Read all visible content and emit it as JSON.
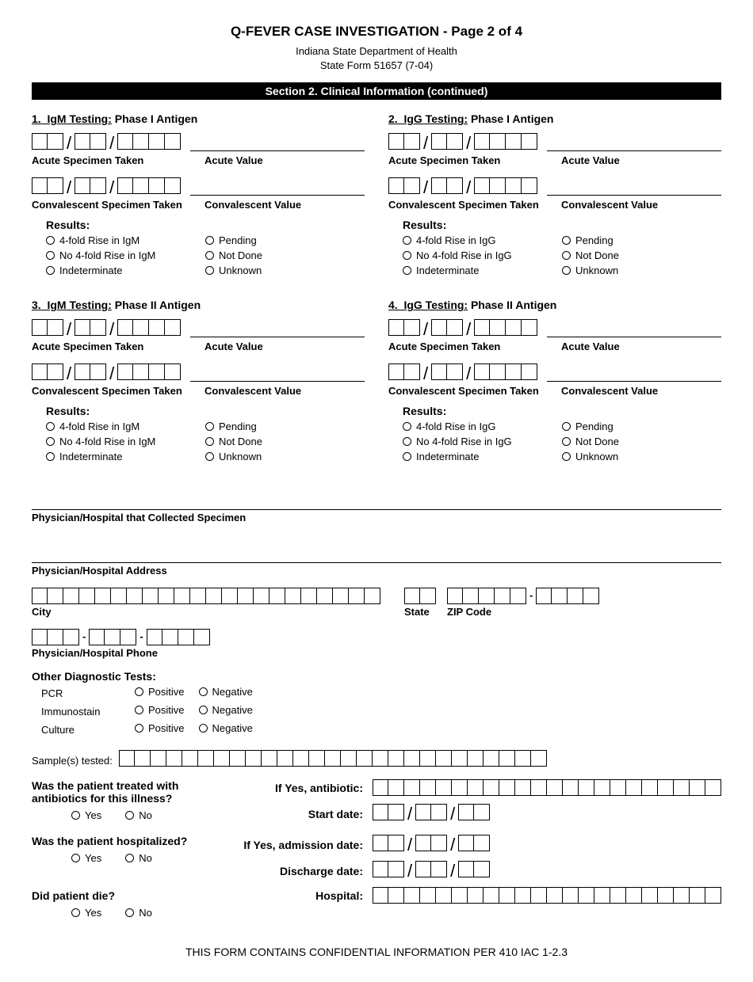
{
  "header": {
    "title": "Q-FEVER CASE INVESTIGATION -  Page 2 of 4",
    "dept": "Indiana State Department of Health",
    "form": "State Form 51657 (7-04)"
  },
  "section_bar": "Section 2. Clinical Information (continued)",
  "tests": [
    {
      "heading_num": "1.",
      "heading_type": "IgM Testing:",
      "heading_phase": "Phase I Antigen",
      "results_col1": [
        "4-fold Rise in IgM",
        "No 4-fold Rise in IgM",
        "Indeterminate"
      ],
      "results_col2": [
        "Pending",
        "Not Done",
        "Unknown"
      ]
    },
    {
      "heading_num": "2.",
      "heading_type": "IgG Testing:",
      "heading_phase": "Phase I Antigen",
      "results_col1": [
        "4-fold Rise in IgG",
        "No 4-fold Rise in IgG",
        "Indeterminate"
      ],
      "results_col2": [
        "Pending",
        "Not Done",
        "Unknown"
      ]
    },
    {
      "heading_num": "3.",
      "heading_type": "IgM Testing:",
      "heading_phase": "Phase II Antigen",
      "results_col1": [
        "4-fold Rise in IgM",
        "No 4-fold Rise in IgM",
        "Indeterminate"
      ],
      "results_col2": [
        "Pending",
        "Not Done",
        "Unknown"
      ]
    },
    {
      "heading_num": "4.",
      "heading_type": "IgG Testing:",
      "heading_phase": "Phase II Antigen",
      "results_col1": [
        "4-fold Rise in IgG",
        "No 4-fold Rise in IgG",
        "Indeterminate"
      ],
      "results_col2": [
        "Pending",
        "Not Done",
        "Unknown"
      ]
    }
  ],
  "labels": {
    "acute_spec": "Acute Specimen Taken",
    "acute_val": "Acute Value",
    "conv_spec": "Convalescent Specimen Taken",
    "conv_val": "Convalescent Value",
    "results": "Results:",
    "physician_collected": "Physician/Hospital that Collected Specimen",
    "physician_address": "Physician/Hospital Address",
    "city": "City",
    "state": "State",
    "zip": "ZIP Code",
    "physician_phone": "Physician/Hospital Phone",
    "other_diag": "Other Diagnostic Tests:",
    "pcr": "PCR",
    "immunostain": "Immunostain",
    "culture": "Culture",
    "positive": "Positive",
    "negative": "Negative",
    "samples": "Sample(s) tested:",
    "q_antibiotics": "Was the patient treated with antibiotics for this illness?",
    "if_yes_antibiotic": "If Yes, antibiotic:",
    "start_date": "Start date:",
    "q_hospitalized": "Was the patient hospitalized?",
    "admission_date": "If Yes, admission date:",
    "discharge_date": "Discharge date:",
    "hospital": "Hospital:",
    "q_died": "Did patient die?",
    "yes": "Yes",
    "no": "No"
  },
  "footer": "THIS FORM CONTAINS CONFIDENTIAL INFORMATION PER 410 IAC 1-2.3",
  "cells": {
    "date_mm": 2,
    "date_dd": 2,
    "date_yyyy": 4,
    "city": 22,
    "state": 2,
    "zip5": 5,
    "zip4": 4,
    "phone1": 3,
    "phone2": 3,
    "phone3": 4,
    "samples": 27,
    "antibiotic": 22,
    "hospital": 22,
    "right_mm": 2,
    "right_dd": 2,
    "right_yy": 2
  }
}
